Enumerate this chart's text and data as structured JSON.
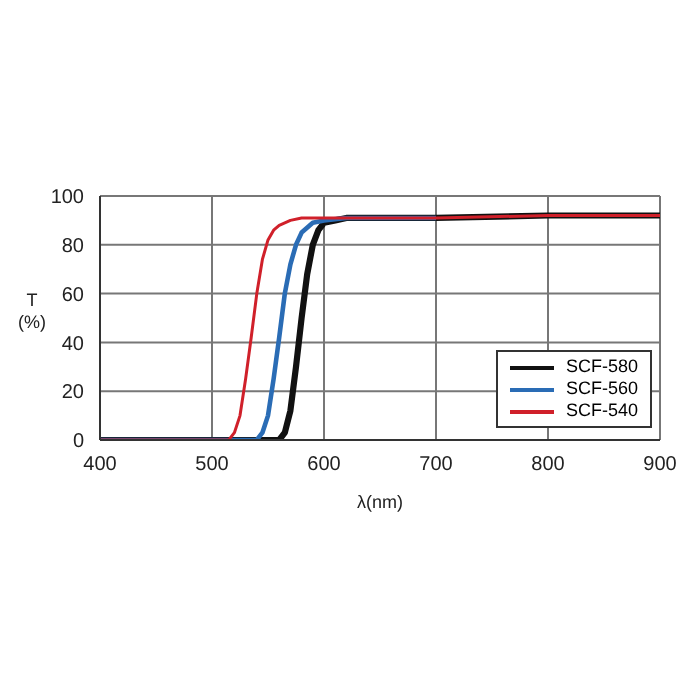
{
  "chart_data": {
    "type": "line",
    "xlabel": "λ(nm)",
    "ylabel": "T\n(%)",
    "xlim": [
      400,
      900
    ],
    "xticks": [
      400,
      500,
      600,
      700,
      800,
      900
    ],
    "ylim": [
      0,
      100
    ],
    "yticks": [
      0,
      20,
      40,
      60,
      80,
      100
    ],
    "grid": true,
    "legend": "bottom right",
    "marker": "none",
    "line_style": "solid",
    "series": [
      {
        "name": "SCF-580",
        "color": "#111111",
        "x": [
          400,
          550,
          560,
          565,
          570,
          575,
          580,
          585,
          590,
          595,
          600,
          610,
          620,
          630,
          700,
          800,
          900
        ],
        "values": [
          0,
          0,
          0,
          3,
          12,
          30,
          50,
          68,
          80,
          86,
          89,
          90,
          91,
          91,
          91,
          92,
          92
        ]
      },
      {
        "name": "SCF-560",
        "color": "#2a6cb5",
        "x": [
          400,
          530,
          540,
          545,
          550,
          555,
          560,
          565,
          570,
          575,
          580,
          590,
          600,
          620,
          700
        ],
        "values": [
          0,
          0,
          0,
          3,
          10,
          25,
          42,
          60,
          72,
          80,
          85,
          89,
          90,
          91,
          91
        ]
      },
      {
        "name": "SCF-540",
        "color": "#d0202a",
        "x": [
          400,
          510,
          515,
          520,
          525,
          530,
          535,
          540,
          545,
          550,
          555,
          560,
          570,
          580,
          600,
          700,
          800,
          900
        ],
        "values": [
          0,
          0,
          0,
          3,
          10,
          25,
          42,
          60,
          74,
          82,
          86,
          88,
          90,
          91,
          91,
          91,
          92,
          92
        ]
      }
    ]
  }
}
